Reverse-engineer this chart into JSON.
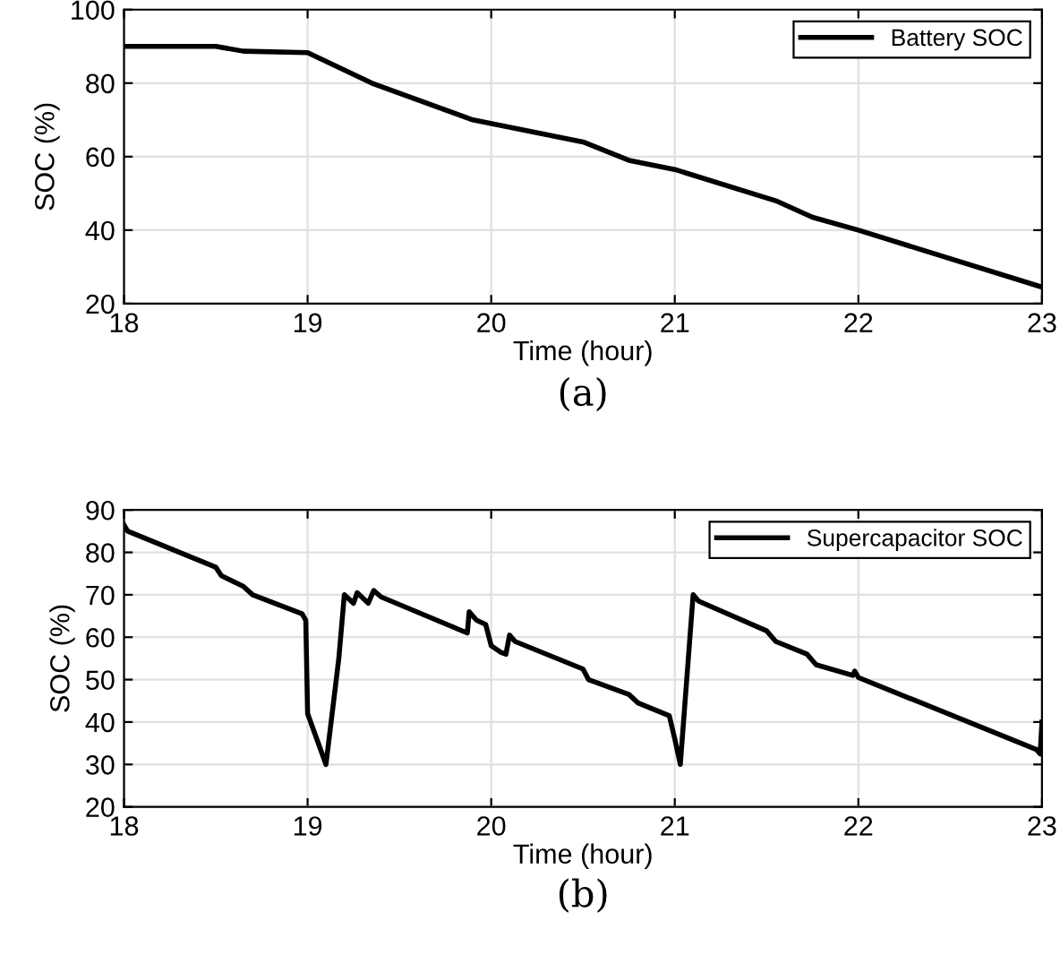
{
  "chart_data": [
    {
      "type": "line",
      "xlabel": "Time (hour)",
      "ylabel": "SOC (%)",
      "annotations": [
        "(a)"
      ],
      "xlim": [
        18,
        23
      ],
      "xticks": [
        18,
        19,
        20,
        21,
        22,
        23
      ],
      "ylim": [
        20,
        100
      ],
      "yticks": [
        20,
        40,
        60,
        80,
        100
      ],
      "grid": true,
      "legend": "top right",
      "series": [
        {
          "name": "Battery SOC",
          "color": "#000000",
          "x": [
            18,
            18.5,
            18.65,
            19,
            19.35,
            19.9,
            20.5,
            20.75,
            21,
            21.55,
            21.75,
            22,
            23
          ],
          "values": [
            90,
            90,
            88.7,
            88.3,
            80,
            70,
            64,
            59,
            56.5,
            48,
            43.5,
            40,
            24.5
          ]
        }
      ]
    },
    {
      "type": "line",
      "xlabel": "Time (hour)",
      "ylabel": "SOC (%)",
      "annotations": [
        "(b)"
      ],
      "xlim": [
        18,
        23
      ],
      "xticks": [
        18,
        19,
        20,
        21,
        22,
        23
      ],
      "ylim": [
        20,
        90
      ],
      "yticks": [
        20,
        30,
        40,
        50,
        60,
        70,
        80,
        90
      ],
      "grid": true,
      "legend": "top right",
      "series": [
        {
          "name": "Supercapacitor SOC",
          "color": "#000000",
          "x": [
            18,
            18.02,
            18.5,
            18.53,
            18.65,
            18.7,
            18.97,
            18.99,
            19,
            19.1,
            19.17,
            19.2,
            19.25,
            19.27,
            19.33,
            19.36,
            19.4,
            19.87,
            19.88,
            19.92,
            19.97,
            20,
            20.05,
            20.08,
            20.1,
            20.13,
            20.5,
            20.53,
            20.75,
            20.8,
            20.97,
            21,
            21.03,
            21.1,
            21.13,
            21.5,
            21.55,
            21.72,
            21.77,
            21.97,
            21.98,
            22,
            22.97,
            22.99,
            23
          ],
          "values": [
            86.5,
            85,
            76.5,
            74.5,
            72,
            70,
            65.5,
            64,
            42,
            30,
            55,
            70,
            68,
            70.5,
            68,
            71,
            69.5,
            61,
            66,
            64,
            63,
            58,
            56.5,
            56,
            60.5,
            59,
            52.5,
            50,
            46.5,
            44.5,
            41.5,
            36,
            30,
            70,
            68.5,
            61.5,
            59,
            56,
            53.5,
            51,
            52,
            50.5,
            33.5,
            32.5,
            40
          ]
        }
      ]
    }
  ]
}
